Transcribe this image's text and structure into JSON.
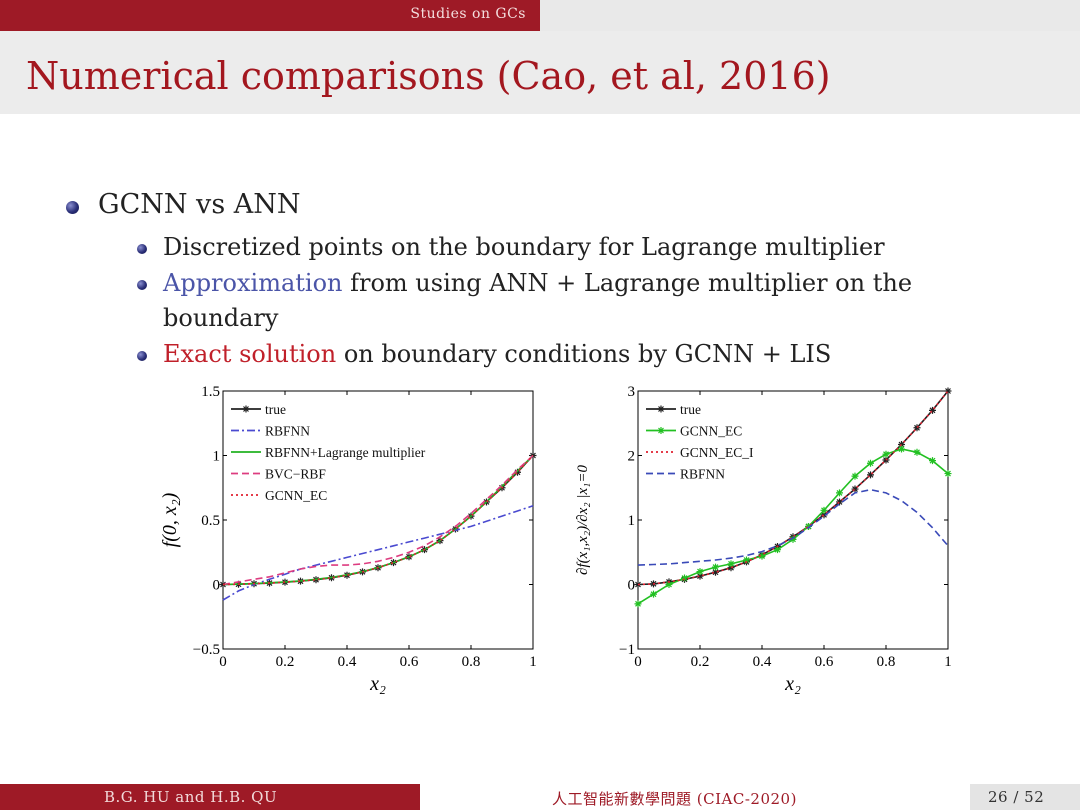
{
  "header": {
    "section": "Studies on GCs"
  },
  "slide": {
    "title": "Numerical comparisons (Cao, et al, 2016)"
  },
  "content": {
    "bullet1": "GCNN vs ANN",
    "sub1": "Discretized points on the boundary for Lagrange multiplier",
    "sub2_highlight": "Approximation",
    "sub2_rest": " from using ANN + Lagrange multiplier on the",
    "sub2_line2": "boundary",
    "sub3_highlight": "Exact solution",
    "sub3_rest": " on boundary conditions by GCNN + LIS"
  },
  "chart_data": [
    {
      "type": "line",
      "xlabel": "x₂",
      "ylabel": "f(0, x₂)",
      "xlim": [
        0,
        1
      ],
      "ylim": [
        -0.5,
        1.5
      ],
      "xticks": [
        "0",
        "0.2",
        "0.4",
        "0.6",
        "0.8",
        "1"
      ],
      "yticks": [
        "−0.5",
        "0",
        "0.5",
        "1",
        "1.5"
      ],
      "legend_position": "top-left",
      "x": [
        0,
        0.05,
        0.1,
        0.15,
        0.2,
        0.25,
        0.3,
        0.35,
        0.4,
        0.45,
        0.5,
        0.55,
        0.6,
        0.65,
        0.7,
        0.75,
        0.8,
        0.85,
        0.9,
        0.95,
        1
      ],
      "series": [
        {
          "name": "true",
          "color": "#222222",
          "dash": "solid",
          "marker": true,
          "values": [
            0,
            0.002,
            0.006,
            0.011,
            0.018,
            0.026,
            0.037,
            0.052,
            0.072,
            0.098,
            0.13,
            0.17,
            0.215,
            0.27,
            0.34,
            0.43,
            0.53,
            0.64,
            0.75,
            0.87,
            1.0
          ]
        },
        {
          "name": "RBFNN",
          "color": "#4a4ad0",
          "dash": "dashdot",
          "marker": false,
          "values": [
            -0.12,
            -0.05,
            0.0,
            0.04,
            0.08,
            0.12,
            0.15,
            0.18,
            0.21,
            0.24,
            0.27,
            0.3,
            0.33,
            0.36,
            0.39,
            0.42,
            0.45,
            0.49,
            0.53,
            0.57,
            0.61
          ]
        },
        {
          "name": "RBFNN+Lagrange multiplier",
          "color": "#22b222",
          "dash": "solid",
          "marker": false,
          "values": [
            0,
            0.003,
            0.008,
            0.013,
            0.02,
            0.028,
            0.04,
            0.055,
            0.075,
            0.1,
            0.132,
            0.17,
            0.215,
            0.27,
            0.34,
            0.43,
            0.53,
            0.64,
            0.76,
            0.88,
            1.0
          ]
        },
        {
          "name": "BVC−RBF",
          "color": "#dd3c80",
          "dash": "dashed",
          "marker": false,
          "values": [
            0,
            0.02,
            0.04,
            0.06,
            0.09,
            0.12,
            0.14,
            0.15,
            0.15,
            0.16,
            0.18,
            0.21,
            0.25,
            0.3,
            0.37,
            0.45,
            0.55,
            0.66,
            0.77,
            0.89,
            1.0
          ]
        },
        {
          "name": "GCNN_EC",
          "color": "#e02030",
          "dash": "dotted",
          "marker": false,
          "values": [
            0,
            0.002,
            0.006,
            0.011,
            0.018,
            0.026,
            0.037,
            0.052,
            0.072,
            0.098,
            0.13,
            0.17,
            0.215,
            0.27,
            0.34,
            0.43,
            0.53,
            0.64,
            0.75,
            0.87,
            1.0
          ]
        }
      ]
    },
    {
      "type": "line",
      "xlabel": "x₂",
      "ylabel": "∂f(x₁,x₂)/∂x₂ |x₁=0",
      "xlim": [
        0,
        1
      ],
      "ylim": [
        -1,
        3
      ],
      "xticks": [
        "0",
        "0.2",
        "0.4",
        "0.6",
        "0.8",
        "1"
      ],
      "yticks": [
        "−1",
        "0",
        "1",
        "2",
        "3"
      ],
      "legend_position": "top-left",
      "x": [
        0,
        0.05,
        0.1,
        0.15,
        0.2,
        0.25,
        0.3,
        0.35,
        0.4,
        0.45,
        0.5,
        0.55,
        0.6,
        0.65,
        0.7,
        0.75,
        0.8,
        0.85,
        0.9,
        0.95,
        1
      ],
      "series": [
        {
          "name": "true",
          "color": "#222222",
          "dash": "solid",
          "marker": true,
          "values": [
            0,
            0.01,
            0.04,
            0.08,
            0.13,
            0.19,
            0.26,
            0.35,
            0.46,
            0.59,
            0.74,
            0.9,
            1.08,
            1.28,
            1.48,
            1.7,
            1.93,
            2.17,
            2.43,
            2.7,
            3.0
          ]
        },
        {
          "name": "GCNN_EC",
          "color": "#22c022",
          "dash": "solid",
          "marker": true,
          "values": [
            -0.3,
            -0.15,
            0.0,
            0.1,
            0.2,
            0.27,
            0.32,
            0.38,
            0.44,
            0.54,
            0.7,
            0.9,
            1.15,
            1.42,
            1.68,
            1.88,
            2.02,
            2.1,
            2.05,
            1.92,
            1.72
          ]
        },
        {
          "name": "GCNN_EC_I",
          "color": "#e02030",
          "dash": "dotted",
          "marker": false,
          "values": [
            0,
            0.01,
            0.04,
            0.08,
            0.13,
            0.19,
            0.26,
            0.35,
            0.46,
            0.59,
            0.74,
            0.9,
            1.08,
            1.28,
            1.48,
            1.7,
            1.93,
            2.17,
            2.43,
            2.7,
            3.0
          ]
        },
        {
          "name": "RBFNN",
          "color": "#3a4ab8",
          "dash": "dashed",
          "marker": false,
          "values": [
            0.3,
            0.31,
            0.32,
            0.34,
            0.36,
            0.38,
            0.41,
            0.45,
            0.51,
            0.6,
            0.72,
            0.88,
            1.06,
            1.25,
            1.42,
            1.47,
            1.42,
            1.3,
            1.12,
            0.88,
            0.6
          ]
        }
      ]
    }
  ],
  "footer": {
    "authors": "B.G. HU and H.B. QU",
    "event": "人工智能新數學問題 (CIAC-2020)",
    "page": "26 / 52"
  }
}
